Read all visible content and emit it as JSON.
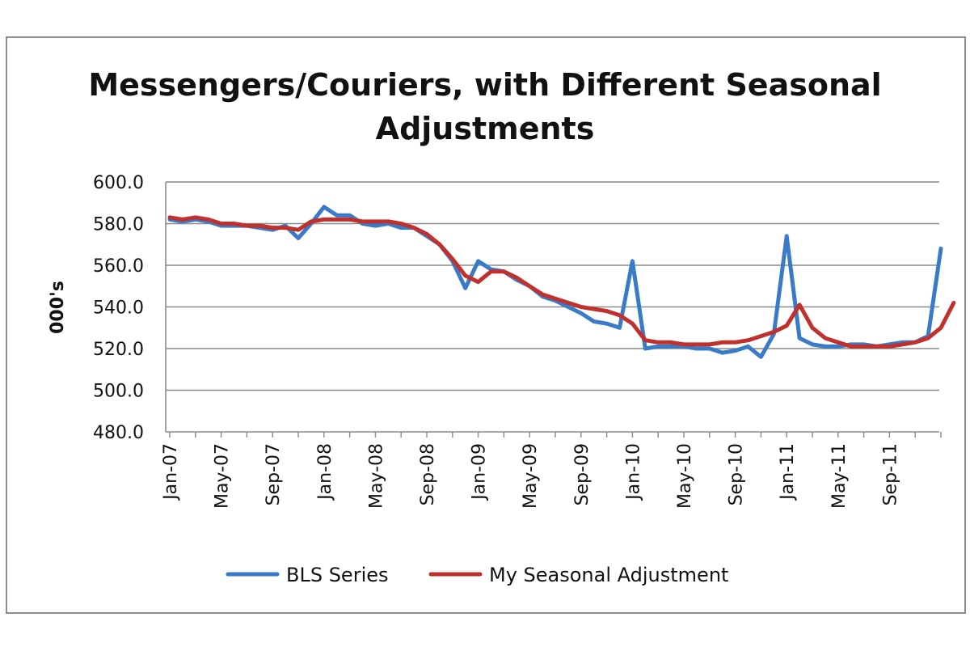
{
  "chart_data": {
    "type": "line",
    "title_lines": [
      "Messengers/Couriers, with Different Seasonal",
      "Adjustments"
    ],
    "xlabel": "",
    "ylabel": "000's",
    "ylim": [
      480,
      600
    ],
    "yticks": [
      "480.0",
      "500.0",
      "520.0",
      "540.0",
      "560.0",
      "580.0",
      "600.0"
    ],
    "grid": true,
    "legend_position": "bottom",
    "x_tick_labels": [
      "Jan-07",
      "May-07",
      "Sep-07",
      "Jan-08",
      "May-08",
      "Sep-08",
      "Jan-09",
      "May-09",
      "Sep-09",
      "Jan-10",
      "May-10",
      "Sep-10",
      "Jan-11",
      "May-11",
      "Sep-11"
    ],
    "x_start": "Jan-07",
    "series": [
      {
        "name": "BLS Series",
        "color": "#3a7bc8",
        "values": [
          582,
          581,
          582,
          581,
          579,
          579,
          579,
          578,
          577,
          579,
          573,
          580,
          588,
          584,
          584,
          580,
          579,
          580,
          578,
          578,
          574,
          570,
          562,
          549,
          562,
          558,
          557,
          553,
          550,
          545,
          543,
          540,
          537,
          533,
          532,
          530,
          562,
          520,
          521,
          521,
          521,
          520,
          520,
          518,
          519,
          521,
          516,
          527,
          574,
          525,
          522,
          521,
          521,
          522,
          522,
          521,
          522,
          523,
          523,
          526,
          568
        ]
      },
      {
        "name": "My Seasonal Adjustment",
        "color": "#c0302d",
        "values": [
          583,
          582,
          583,
          582,
          580,
          580,
          579,
          579,
          578,
          578,
          577,
          581,
          582,
          582,
          582,
          581,
          581,
          581,
          580,
          578,
          575,
          570,
          563,
          555,
          552,
          557,
          557,
          554,
          550,
          546,
          544,
          542,
          540,
          539,
          538,
          536,
          532,
          524,
          523,
          523,
          522,
          522,
          522,
          523,
          523,
          524,
          526,
          528,
          531,
          541,
          530,
          525,
          523,
          521,
          521,
          521,
          521,
          522,
          523,
          525,
          530,
          542
        ]
      }
    ]
  }
}
